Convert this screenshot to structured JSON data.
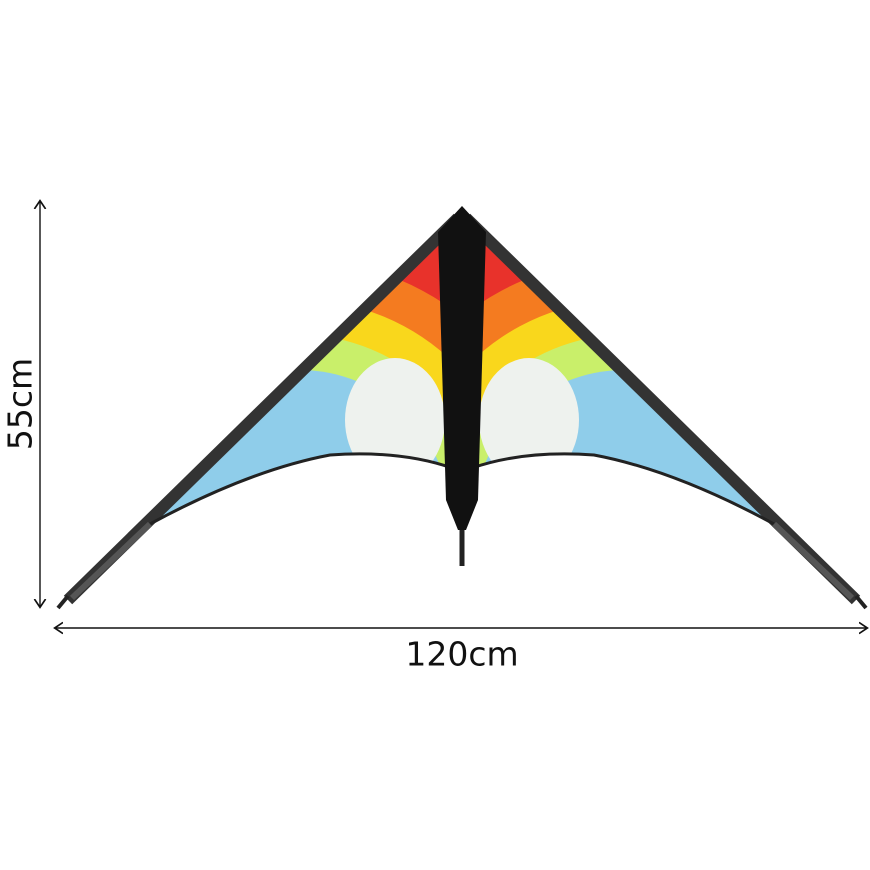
{
  "dimensions": {
    "height": "55cm",
    "width": "120cm"
  }
}
